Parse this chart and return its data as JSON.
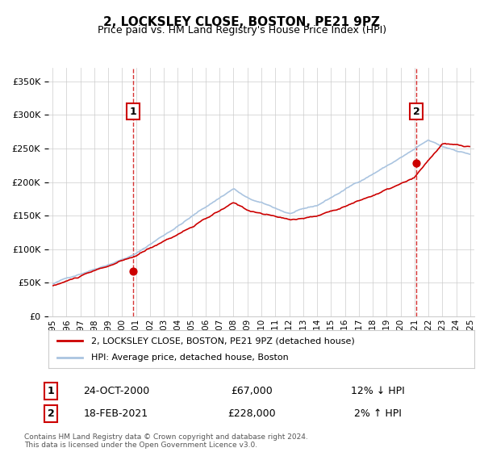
{
  "title": "2, LOCKSLEY CLOSE, BOSTON, PE21 9PZ",
  "subtitle": "Price paid vs. HM Land Registry's House Price Index (HPI)",
  "legend_entry1": "2, LOCKSLEY CLOSE, BOSTON, PE21 9PZ (detached house)",
  "legend_entry2": "HPI: Average price, detached house, Boston",
  "label1_date": "24-OCT-2000",
  "label1_price": "£67,000",
  "label1_hpi": "12% ↓ HPI",
  "label2_date": "18-FEB-2021",
  "label2_price": "£228,000",
  "label2_hpi": "2% ↑ HPI",
  "footer1": "Contains HM Land Registry data © Crown copyright and database right 2024.",
  "footer2": "This data is licensed under the Open Government Licence v3.0.",
  "sale1_year": 2000.8,
  "sale1_price": 67000,
  "sale2_year": 2021.12,
  "sale2_price": 228000,
  "hpi_color": "#aac4e0",
  "price_color": "#cc0000",
  "sale_dot_color": "#cc0000",
  "dashed_line_color": "#cc0000",
  "ylim_max": 370000,
  "background_color": "#f8f8f8",
  "plot_bg_color": "#ffffff"
}
